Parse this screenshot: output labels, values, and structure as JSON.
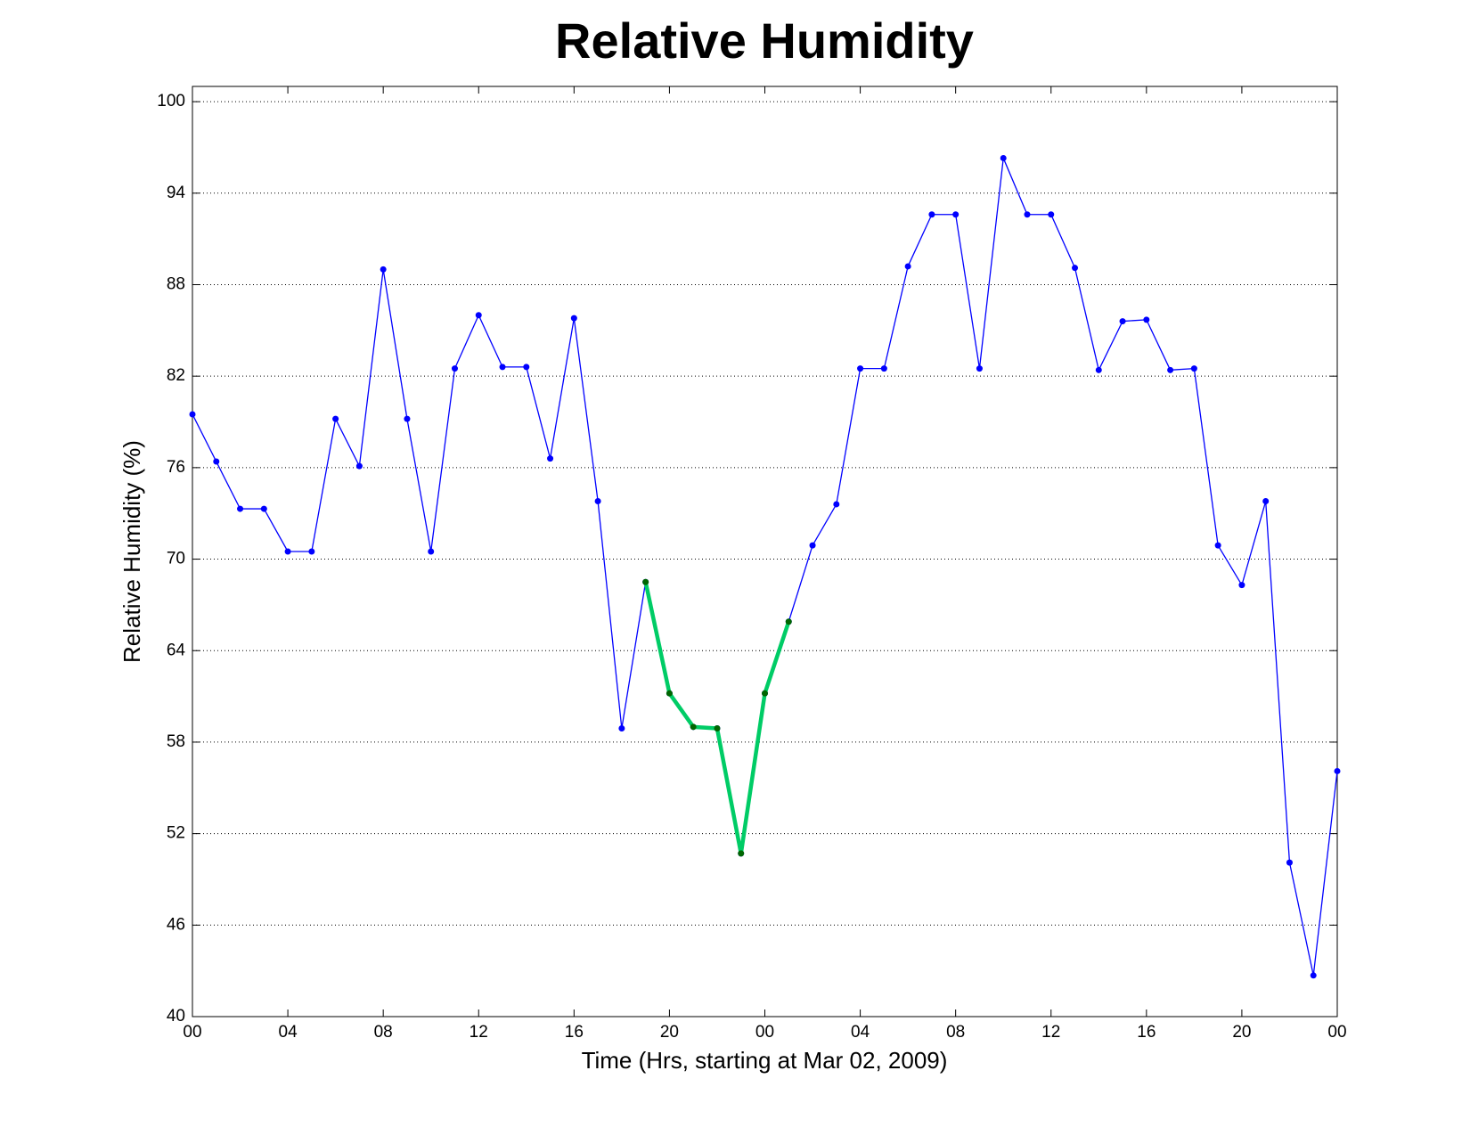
{
  "chart_data": {
    "type": "line",
    "title": "Relative Humidity",
    "xlabel": "Time (Hrs, starting at Mar 02, 2009)",
    "ylabel": "Relative Humidity (%)",
    "x": [
      0,
      1,
      2,
      3,
      4,
      5,
      6,
      7,
      8,
      9,
      10,
      11,
      12,
      13,
      14,
      15,
      16,
      17,
      18,
      19,
      20,
      21,
      22,
      23,
      24,
      25,
      26,
      27,
      28,
      29,
      30,
      31,
      32,
      33,
      34,
      35,
      36,
      37,
      38,
      39,
      40,
      41,
      42,
      43,
      44,
      45,
      46,
      47,
      48
    ],
    "series": [
      {
        "color": "#0000ff",
        "marker_color": "#0000ff",
        "values": [
          79.5,
          76.4,
          73.3,
          73.3,
          70.5,
          70.5,
          79.2,
          76.1,
          89.0,
          79.2,
          70.5,
          82.5,
          86.0,
          82.6,
          82.6,
          76.6,
          85.8,
          73.8,
          58.9,
          68.5,
          61.2,
          59.0,
          58.9,
          50.7,
          61.2,
          65.9,
          70.9,
          73.6,
          82.5,
          82.5,
          89.2,
          92.6,
          92.6,
          82.5,
          96.3,
          92.6,
          92.6,
          89.1,
          82.4,
          85.6,
          85.7,
          82.4,
          82.5,
          70.9,
          68.3,
          73.8,
          50.1,
          42.7,
          56.1
        ]
      },
      {
        "color": "#00cc66",
        "marker_color": "#006600",
        "values": [
          null,
          null,
          null,
          null,
          null,
          null,
          null,
          null,
          null,
          null,
          null,
          null,
          null,
          null,
          null,
          null,
          null,
          null,
          null,
          68.5,
          61.2,
          59.0,
          58.9,
          50.7,
          61.2,
          65.9,
          null,
          null,
          null,
          null,
          null,
          null,
          null,
          null,
          null,
          null,
          null,
          null,
          null,
          null,
          null,
          null,
          null,
          null,
          null,
          null,
          null,
          null,
          null
        ]
      }
    ],
    "xlim": [
      0,
      48
    ],
    "xticks": [
      {
        "value": 0,
        "label": "00"
      },
      {
        "value": 4,
        "label": "04"
      },
      {
        "value": 8,
        "label": "08"
      },
      {
        "value": 12,
        "label": "12"
      },
      {
        "value": 16,
        "label": "16"
      },
      {
        "value": 20,
        "label": "20"
      },
      {
        "value": 24,
        "label": "00"
      },
      {
        "value": 28,
        "label": "04"
      },
      {
        "value": 32,
        "label": "08"
      },
      {
        "value": 36,
        "label": "12"
      },
      {
        "value": 40,
        "label": "16"
      },
      {
        "value": 44,
        "label": "20"
      },
      {
        "value": 48,
        "label": "00"
      }
    ],
    "ylim": [
      40,
      101
    ],
    "yticks": [
      40,
      46,
      52,
      58,
      64,
      70,
      76,
      82,
      88,
      94,
      100
    ],
    "grid": true
  }
}
